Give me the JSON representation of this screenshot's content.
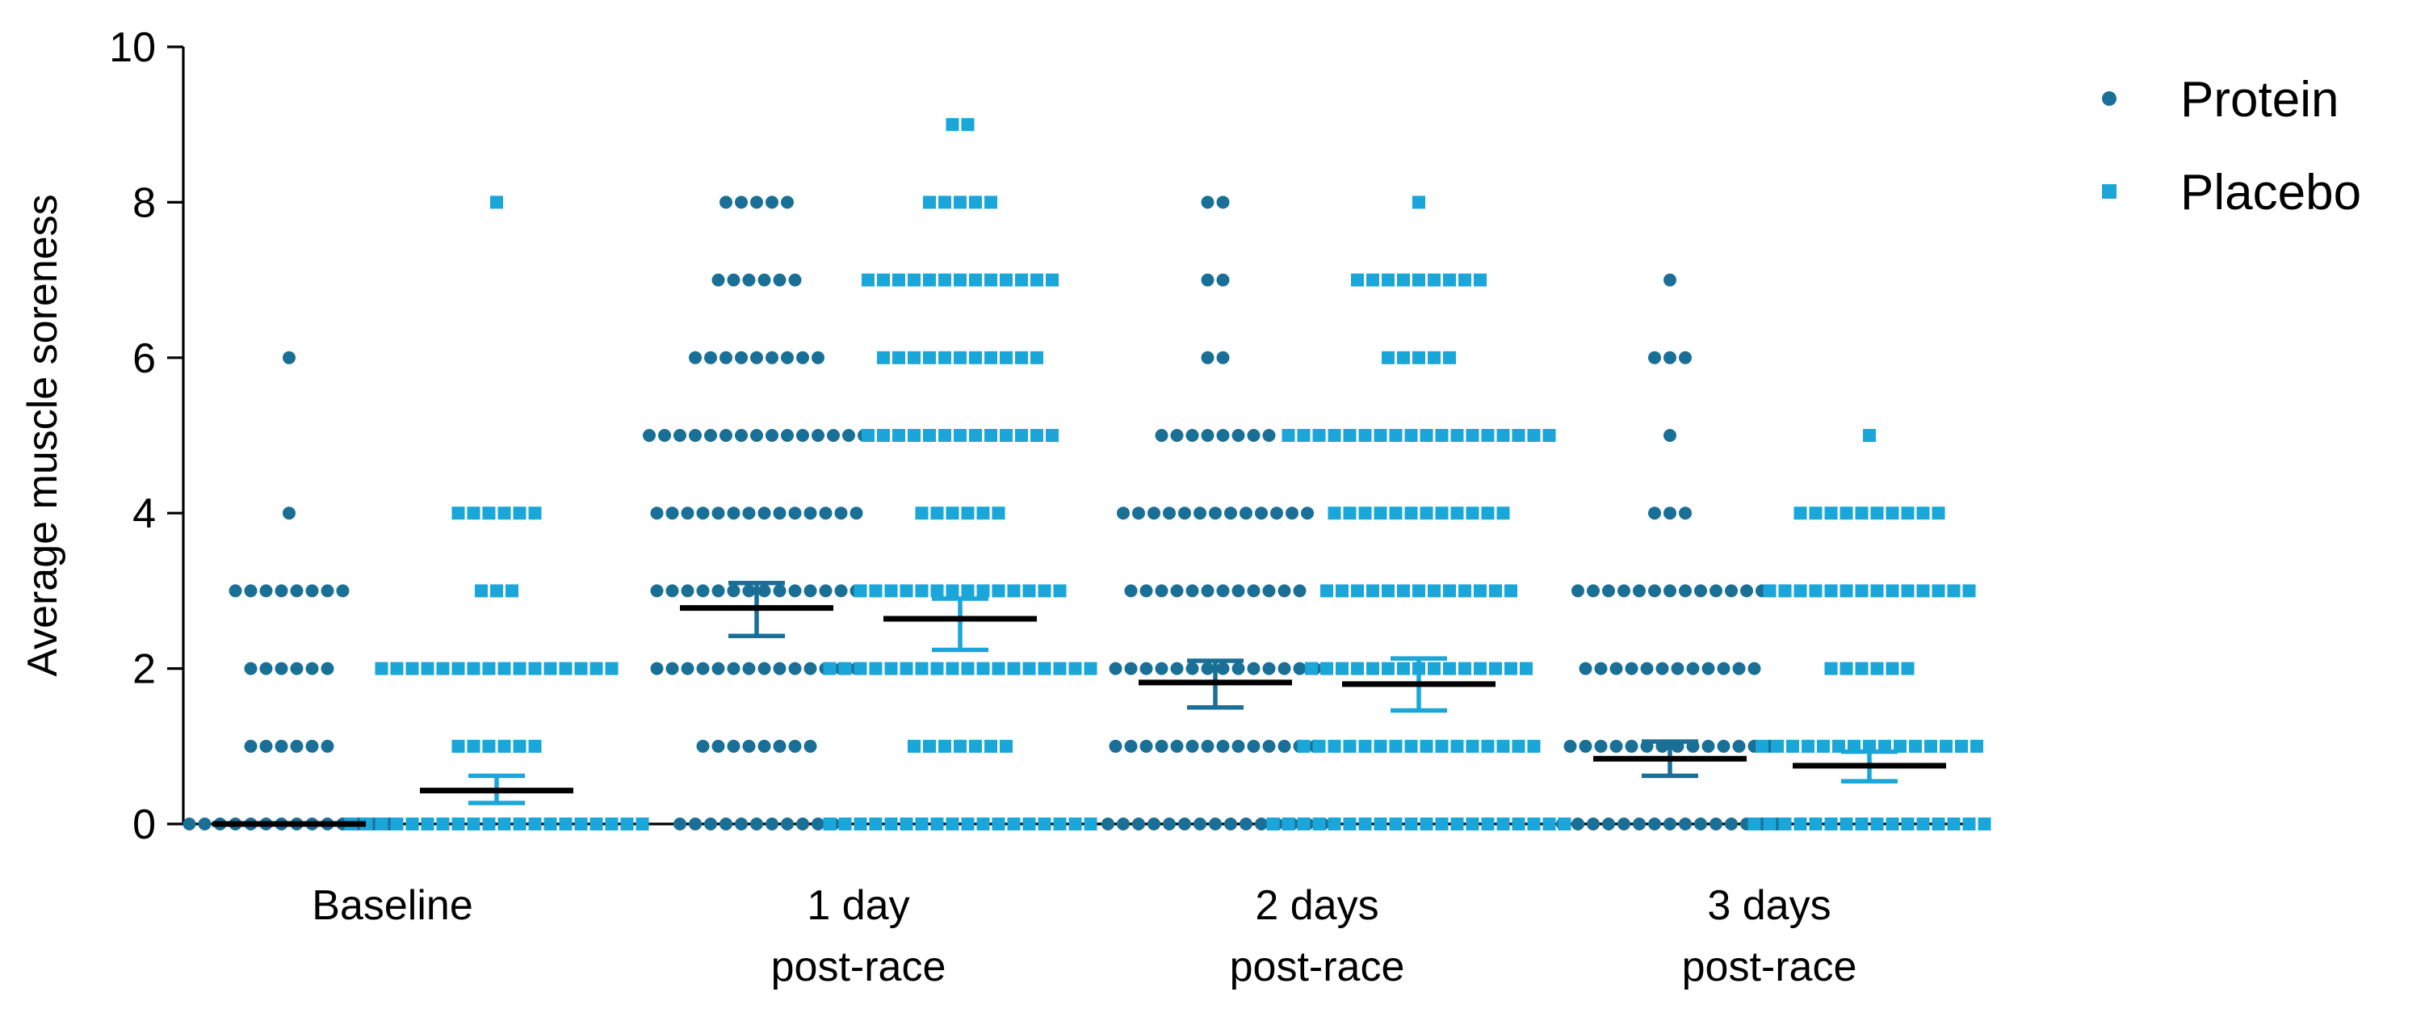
{
  "chart_data": {
    "type": "scatter",
    "ylabel": "Average muscle soreness",
    "ylim": [
      0,
      10
    ],
    "yticks": [
      "0",
      "2",
      "4",
      "6",
      "8",
      "10"
    ],
    "categories": [
      [
        "Baseline"
      ],
      [
        "1 day",
        "post-race"
      ],
      [
        "2 days",
        "post-race"
      ],
      [
        "3 days",
        "post-race"
      ]
    ],
    "legend_position": "top-right",
    "grid": false,
    "series": [
      {
        "name": "Protein",
        "marker": "circle",
        "color": "#1a6f96",
        "groups": [
          {
            "counts": {
              "0": 14,
              "1": 6,
              "2": 6,
              "3": 8,
              "4": 1,
              "6": 1
            },
            "mean": 0.0,
            "error": [
              0.0,
              0.0
            ]
          },
          {
            "counts": {
              "0": 11,
              "1": 8,
              "2": 14,
              "3": 14,
              "4": 14,
              "5": 15,
              "6": 9,
              "7": 6,
              "8": 5
            },
            "mean": 2.78,
            "error": [
              2.42,
              3.1
            ]
          },
          {
            "counts": {
              "0": 15,
              "1": 14,
              "2": 14,
              "3": 12,
              "4": 13,
              "5": 8,
              "6": 2,
              "7": 2,
              "8": 2
            },
            "mean": 1.82,
            "error": [
              1.5,
              2.1
            ]
          },
          {
            "counts": {
              "0": 15,
              "1": 14,
              "2": 12,
              "3": 13,
              "4": 3,
              "5": 1,
              "6": 3,
              "7": 1
            },
            "mean": 0.84,
            "error": [
              0.62,
              1.06
            ]
          }
        ]
      },
      {
        "name": "Placebo",
        "marker": "square",
        "color": "#1aa6d9",
        "groups": [
          {
            "counts": {
              "0": 20,
              "1": 6,
              "2": 16,
              "3": 3,
              "4": 6,
              "8": 1
            },
            "mean": 0.43,
            "error": [
              0.27,
              0.62
            ]
          },
          {
            "counts": {
              "0": 18,
              "1": 7,
              "2": 18,
              "3": 14,
              "4": 6,
              "5": 13,
              "6": 11,
              "7": 13,
              "8": 5,
              "9": 2
            },
            "mean": 2.64,
            "error": [
              2.24,
              2.9
            ]
          },
          {
            "counts": {
              "0": 20,
              "1": 16,
              "2": 15,
              "3": 13,
              "4": 12,
              "5": 18,
              "6": 5,
              "7": 9,
              "8": 1
            },
            "mean": 1.8,
            "error": [
              1.46,
              2.13
            ]
          },
          {
            "counts": {
              "0": 16,
              "1": 15,
              "2": 6,
              "3": 14,
              "4": 10,
              "5": 1
            },
            "mean": 0.75,
            "error": [
              0.55,
              0.93
            ]
          }
        ]
      }
    ]
  }
}
